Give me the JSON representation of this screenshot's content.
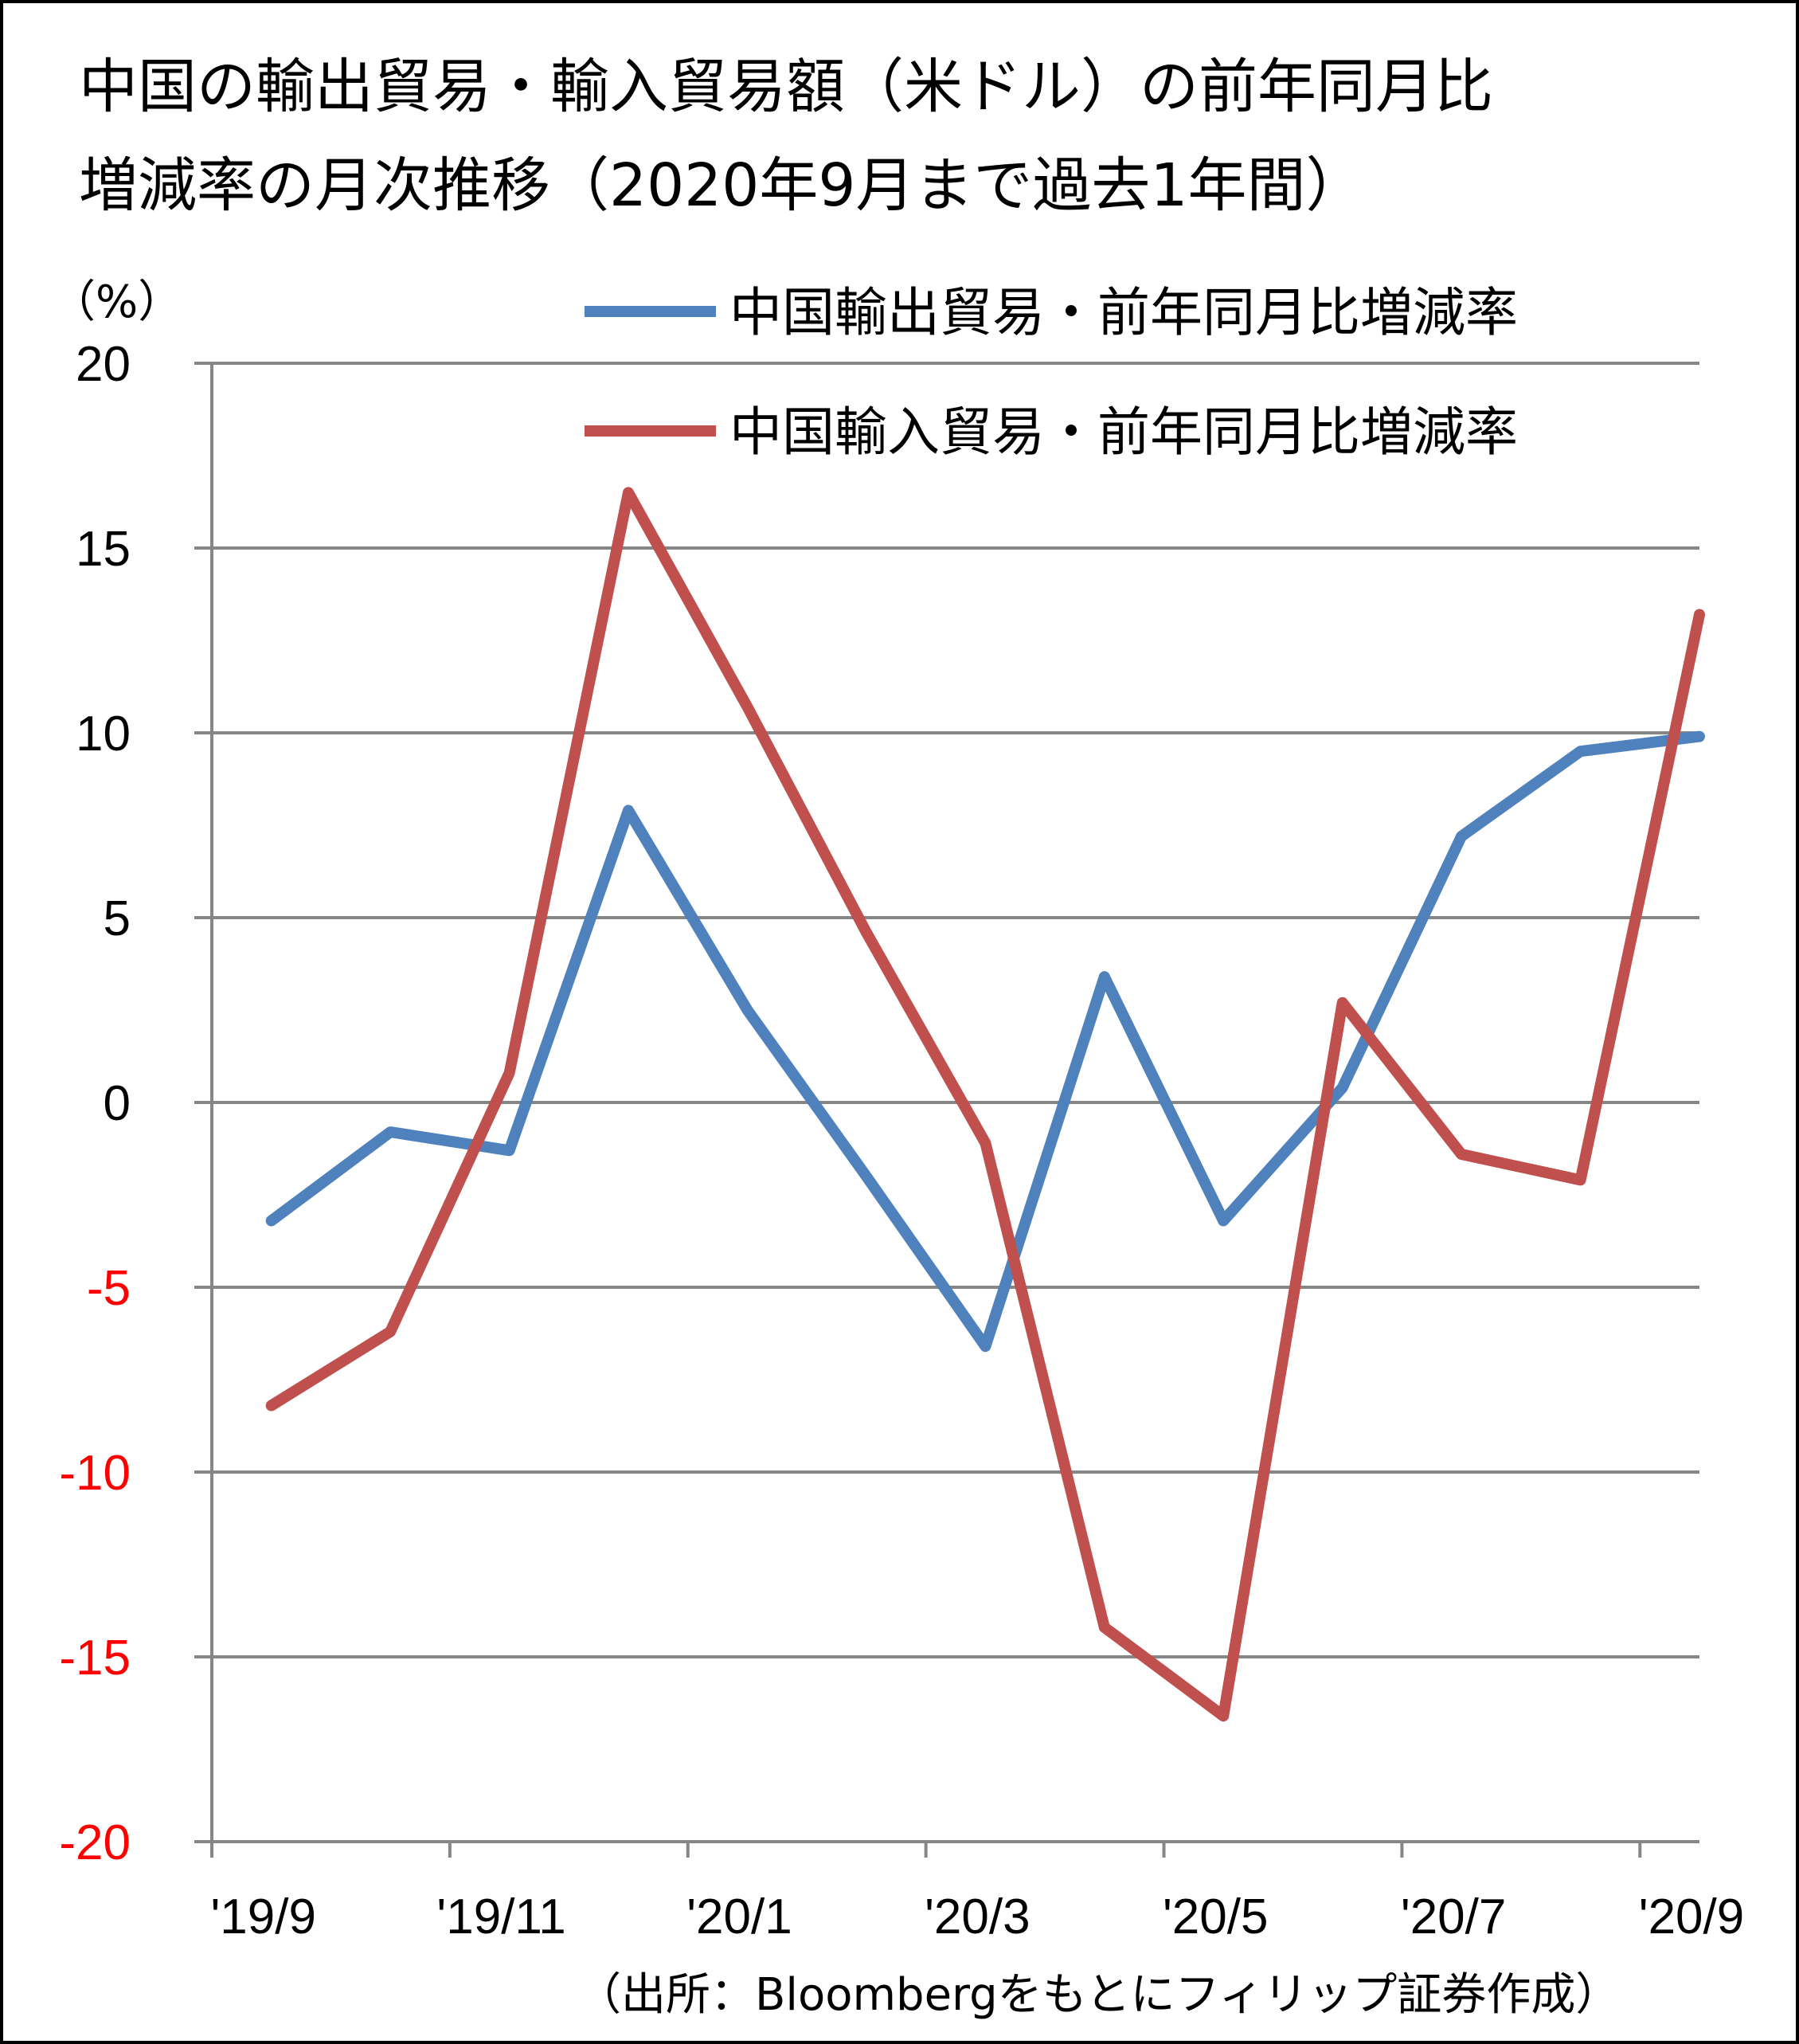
{
  "title_line_1": "中国の輸出貿易・輸入貿易額（米ドル）の前年同月比",
  "title_line_2": "増減率の月次推移（2020年9月まで過去1年間）",
  "unit_label": "（%）",
  "source_note": "（出所：Bloombergをもとにフィリップ証券作成）",
  "colors": {
    "export": "#4f81bd",
    "import": "#c0504d",
    "negative_tick": "#ff0000",
    "positive_tick": "#000000",
    "grid": "#868686"
  },
  "chart_data": {
    "type": "line",
    "categories": [
      "'19/9",
      "'19/10",
      "'19/11",
      "'19/12",
      "'20/1",
      "'20/2",
      "'20/3",
      "'20/4",
      "'20/5",
      "'20/6",
      "'20/7",
      "'20/8",
      "'20/9"
    ],
    "x_tick_labels": [
      "'19/9",
      "'19/11",
      "'20/1",
      "'20/3",
      "'20/5",
      "'20/7",
      "'20/9"
    ],
    "ylim": [
      -20,
      20
    ],
    "y_ticks": [
      20,
      15,
      10,
      5,
      0,
      -5,
      -10,
      -15,
      -20
    ],
    "grid": true,
    "legend_position": "top-right",
    "series": [
      {
        "name": "中国輸出貿易・前年同月比増減率",
        "color": "#4f81bd",
        "values": [
          -3.2,
          -0.8,
          -1.3,
          7.9,
          2.5,
          -2.0,
          -6.6,
          3.4,
          -3.2,
          0.4,
          7.2,
          9.5,
          9.9
        ]
      },
      {
        "name": "中国輸入貿易・前年同月比増減率",
        "color": "#c0504d",
        "values": [
          -8.2,
          -6.2,
          0.8,
          16.5,
          10.7,
          4.6,
          -1.1,
          -14.2,
          -16.6,
          2.7,
          -1.4,
          -2.1,
          13.2
        ]
      }
    ]
  }
}
